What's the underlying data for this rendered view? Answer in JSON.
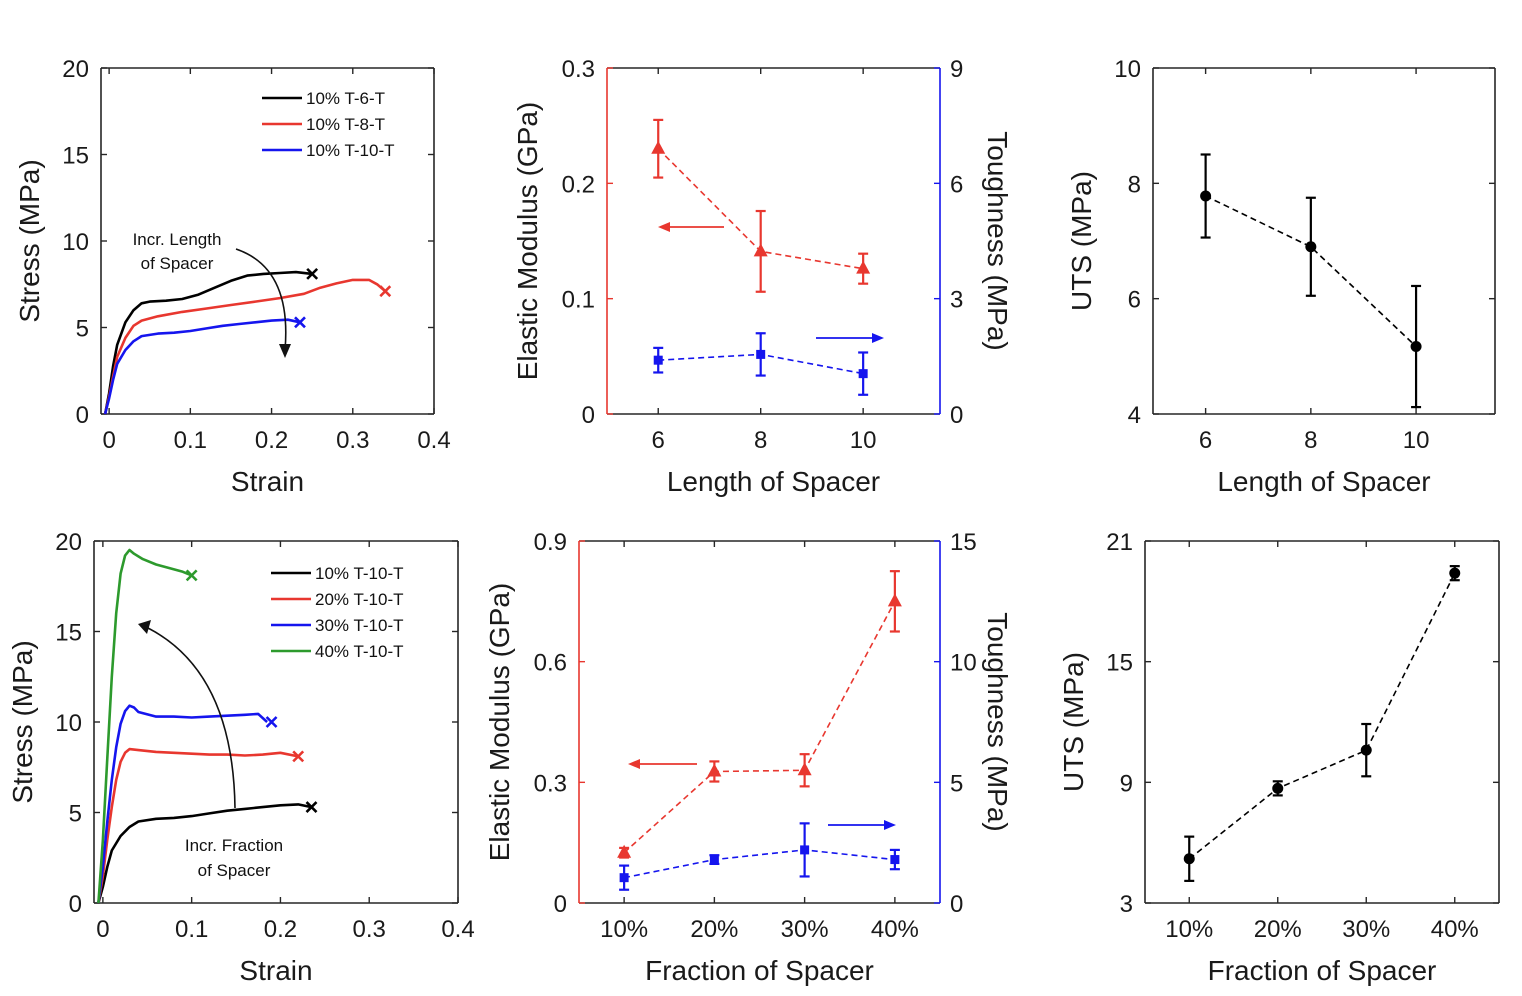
{
  "colors": {
    "black": "#000000",
    "red": "#e8372f",
    "blue": "#1515ee",
    "green": "#2d9a2d",
    "axis": "#262626"
  },
  "chart_data": [
    {
      "id": "a",
      "type": "line",
      "xlabel": "Strain",
      "ylabel": "Stress (MPa)",
      "xlim": [
        -0.01,
        0.4
      ],
      "ylim": [
        0,
        20
      ],
      "xticks": [
        0,
        0.1,
        0.2,
        0.3,
        0.4
      ],
      "xtick_labels": [
        "0",
        "0.1",
        "0.2",
        "0.3",
        "0.4"
      ],
      "yticks": [
        0,
        5,
        10,
        15,
        20
      ],
      "ytick_labels": [
        "0",
        "5",
        "10",
        "15",
        "20"
      ],
      "legend_position": "top-right",
      "series": [
        {
          "name": "10% T-6-T",
          "color_key": "black",
          "points": [
            [
              -0.005,
              0
            ],
            [
              0,
              1.2
            ],
            [
              0.005,
              2.8
            ],
            [
              0.01,
              4.0
            ],
            [
              0.02,
              5.3
            ],
            [
              0.03,
              6.0
            ],
            [
              0.04,
              6.4
            ],
            [
              0.05,
              6.5
            ],
            [
              0.07,
              6.55
            ],
            [
              0.09,
              6.65
            ],
            [
              0.11,
              6.9
            ],
            [
              0.13,
              7.3
            ],
            [
              0.15,
              7.7
            ],
            [
              0.17,
              8.0
            ],
            [
              0.19,
              8.1
            ],
            [
              0.21,
              8.15
            ],
            [
              0.23,
              8.2
            ],
            [
              0.25,
              8.1
            ]
          ],
          "end_marker": [
            0.25,
            8.1
          ]
        },
        {
          "name": "10% T-8-T",
          "color_key": "red",
          "points": [
            [
              -0.005,
              0
            ],
            [
              0,
              1.0
            ],
            [
              0.005,
              2.2
            ],
            [
              0.01,
              3.3
            ],
            [
              0.02,
              4.4
            ],
            [
              0.03,
              5.1
            ],
            [
              0.04,
              5.4
            ],
            [
              0.06,
              5.65
            ],
            [
              0.09,
              5.9
            ],
            [
              0.12,
              6.1
            ],
            [
              0.15,
              6.3
            ],
            [
              0.18,
              6.5
            ],
            [
              0.21,
              6.7
            ],
            [
              0.24,
              6.95
            ],
            [
              0.26,
              7.3
            ],
            [
              0.28,
              7.55
            ],
            [
              0.3,
              7.75
            ],
            [
              0.32,
              7.75
            ],
            [
              0.33,
              7.5
            ],
            [
              0.34,
              7.1
            ]
          ],
          "end_marker": [
            0.34,
            7.1
          ]
        },
        {
          "name": "10% T-10-T",
          "color_key": "blue",
          "points": [
            [
              -0.005,
              0
            ],
            [
              0,
              0.9
            ],
            [
              0.005,
              2.0
            ],
            [
              0.01,
              2.9
            ],
            [
              0.02,
              3.7
            ],
            [
              0.03,
              4.2
            ],
            [
              0.04,
              4.5
            ],
            [
              0.06,
              4.65
            ],
            [
              0.08,
              4.7
            ],
            [
              0.1,
              4.8
            ],
            [
              0.12,
              4.95
            ],
            [
              0.14,
              5.1
            ],
            [
              0.16,
              5.2
            ],
            [
              0.18,
              5.3
            ],
            [
              0.2,
              5.4
            ],
            [
              0.22,
              5.45
            ],
            [
              0.235,
              5.3
            ]
          ],
          "end_marker": [
            0.235,
            5.3
          ]
        }
      ],
      "annotation": {
        "lines": [
          "Incr. Length",
          "of Spacer"
        ]
      }
    },
    {
      "id": "b",
      "type": "line",
      "xlabel": "Length of Spacer",
      "ylabel": "Elastic Modulus (GPa)",
      "y2label": "Toughness (MPa)",
      "xlim": [
        5,
        11.5
      ],
      "ylim": [
        0,
        0.3
      ],
      "y2lim": [
        0,
        9
      ],
      "xticks": [
        6,
        8,
        10
      ],
      "xtick_labels": [
        "6",
        "8",
        "10"
      ],
      "yticks": [
        0,
        0.1,
        0.2,
        0.3
      ],
      "ytick_labels": [
        "0",
        "0.1",
        "0.2",
        "0.3"
      ],
      "y2ticks": [
        0,
        3,
        6,
        9
      ],
      "y2tick_labels": [
        "0",
        "3",
        "6",
        "9"
      ],
      "series": [
        {
          "axis": "left",
          "color_key": "red",
          "marker": "triangle",
          "x": [
            6,
            8,
            10
          ],
          "y": [
            0.23,
            0.141,
            0.126
          ],
          "err": [
            0.025,
            0.035,
            0.013
          ]
        },
        {
          "axis": "right",
          "color_key": "blue",
          "marker": "square",
          "x": [
            6,
            8,
            10
          ],
          "y": [
            1.4,
            1.55,
            1.05
          ],
          "err": [
            0.32,
            0.55,
            0.55
          ]
        }
      ]
    },
    {
      "id": "c",
      "type": "line",
      "xlabel": "Length of Spacer",
      "ylabel": "UTS (MPa)",
      "xlim": [
        5,
        11.5
      ],
      "ylim": [
        4,
        10
      ],
      "xticks": [
        6,
        8,
        10
      ],
      "xtick_labels": [
        "6",
        "8",
        "10"
      ],
      "yticks": [
        4,
        6,
        8,
        10
      ],
      "ytick_labels": [
        "4",
        "6",
        "8",
        "10"
      ],
      "series": [
        {
          "color_key": "black",
          "marker": "circle",
          "x": [
            6,
            8,
            10
          ],
          "y": [
            7.78,
            6.9,
            5.17
          ],
          "err": [
            0.72,
            0.85,
            1.05
          ]
        }
      ]
    },
    {
      "id": "d",
      "type": "line",
      "xlabel": "Strain",
      "ylabel": "Stress (MPa)",
      "xlim": [
        -0.01,
        0.4
      ],
      "ylim": [
        0,
        20
      ],
      "xticks": [
        0,
        0.1,
        0.2,
        0.3,
        0.4
      ],
      "xtick_labels": [
        "0",
        "0.1",
        "0.2",
        "0.3",
        "0.4"
      ],
      "yticks": [
        0,
        5,
        10,
        15,
        20
      ],
      "ytick_labels": [
        "0",
        "5",
        "10",
        "15",
        "20"
      ],
      "legend_position": "top-right",
      "series": [
        {
          "name": "10% T-10-T",
          "color_key": "black",
          "points": [
            [
              -0.005,
              0
            ],
            [
              0,
              0.9
            ],
            [
              0.005,
              2.0
            ],
            [
              0.01,
              2.9
            ],
            [
              0.02,
              3.7
            ],
            [
              0.03,
              4.2
            ],
            [
              0.04,
              4.5
            ],
            [
              0.06,
              4.65
            ],
            [
              0.08,
              4.7
            ],
            [
              0.1,
              4.8
            ],
            [
              0.12,
              4.95
            ],
            [
              0.14,
              5.1
            ],
            [
              0.16,
              5.2
            ],
            [
              0.18,
              5.3
            ],
            [
              0.2,
              5.4
            ],
            [
              0.22,
              5.45
            ],
            [
              0.235,
              5.3
            ]
          ],
          "end_marker": [
            0.235,
            5.3
          ]
        },
        {
          "name": "20% T-10-T",
          "color_key": "red",
          "points": [
            [
              -0.005,
              0
            ],
            [
              0,
              1.5
            ],
            [
              0.005,
              3.5
            ],
            [
              0.01,
              5.3
            ],
            [
              0.015,
              6.8
            ],
            [
              0.02,
              7.8
            ],
            [
              0.025,
              8.3
            ],
            [
              0.03,
              8.5
            ],
            [
              0.04,
              8.45
            ],
            [
              0.06,
              8.35
            ],
            [
              0.08,
              8.3
            ],
            [
              0.1,
              8.25
            ],
            [
              0.12,
              8.2
            ],
            [
              0.14,
              8.2
            ],
            [
              0.16,
              8.15
            ],
            [
              0.18,
              8.2
            ],
            [
              0.2,
              8.3
            ],
            [
              0.22,
              8.1
            ]
          ],
          "end_marker": [
            0.22,
            8.1
          ]
        },
        {
          "name": "30% T-10-T",
          "color_key": "blue",
          "points": [
            [
              -0.005,
              0
            ],
            [
              0,
              2.0
            ],
            [
              0.005,
              4.5
            ],
            [
              0.01,
              6.8
            ],
            [
              0.015,
              8.6
            ],
            [
              0.02,
              9.9
            ],
            [
              0.025,
              10.6
            ],
            [
              0.03,
              10.9
            ],
            [
              0.035,
              10.8
            ],
            [
              0.04,
              10.55
            ],
            [
              0.06,
              10.3
            ],
            [
              0.08,
              10.3
            ],
            [
              0.1,
              10.25
            ],
            [
              0.12,
              10.3
            ],
            [
              0.14,
              10.35
            ],
            [
              0.16,
              10.4
            ],
            [
              0.175,
              10.45
            ],
            [
              0.185,
              10.0
            ]
          ],
          "end_marker": [
            0.19,
            10.0
          ]
        },
        {
          "name": "40% T-10-T",
          "color_key": "green",
          "points": [
            [
              -0.005,
              0
            ],
            [
              0,
              3.5
            ],
            [
              0.005,
              8.0
            ],
            [
              0.01,
              12.5
            ],
            [
              0.015,
              16.0
            ],
            [
              0.02,
              18.2
            ],
            [
              0.025,
              19.2
            ],
            [
              0.03,
              19.5
            ],
            [
              0.035,
              19.3
            ],
            [
              0.045,
              19.0
            ],
            [
              0.06,
              18.7
            ],
            [
              0.075,
              18.5
            ],
            [
              0.09,
              18.3
            ],
            [
              0.1,
              18.1
            ]
          ],
          "end_marker": [
            0.1,
            18.1
          ]
        }
      ],
      "annotation": {
        "lines": [
          "Incr. Fraction",
          "of Spacer"
        ]
      }
    },
    {
      "id": "e",
      "type": "line",
      "xlabel": "Fraction of Spacer",
      "ylabel": "Elastic Modulus (GPa)",
      "y2label": "Toughness (MPa)",
      "xlim": [
        0.5,
        4.5
      ],
      "ylim": [
        0,
        0.9
      ],
      "y2lim": [
        0,
        15
      ],
      "xticks": [
        1,
        2,
        3,
        4
      ],
      "xtick_labels": [
        "10%",
        "20%",
        "30%",
        "40%"
      ],
      "yticks": [
        0,
        0.3,
        0.6,
        0.9
      ],
      "ytick_labels": [
        "0",
        "0.3",
        "0.6",
        "0.9"
      ],
      "y2ticks": [
        0,
        5,
        10,
        15
      ],
      "y2tick_labels": [
        "0",
        "5",
        "10",
        "15"
      ],
      "series": [
        {
          "axis": "left",
          "color_key": "red",
          "marker": "triangle",
          "x": [
            1,
            2,
            3,
            4
          ],
          "y": [
            0.125,
            0.327,
            0.33,
            0.75
          ],
          "err": [
            0.012,
            0.025,
            0.04,
            0.075
          ]
        },
        {
          "axis": "right",
          "color_key": "blue",
          "marker": "square",
          "x": [
            1,
            2,
            3,
            4
          ],
          "y": [
            1.05,
            1.8,
            2.2,
            1.8
          ],
          "err": [
            0.5,
            0.18,
            1.1,
            0.4
          ]
        }
      ]
    },
    {
      "id": "f",
      "type": "line",
      "xlabel": "Fraction of Spacer",
      "ylabel": "UTS (MPa)",
      "xlim": [
        0.5,
        4.5
      ],
      "ylim": [
        3,
        21
      ],
      "xticks": [
        1,
        2,
        3,
        4
      ],
      "xtick_labels": [
        "10%",
        "20%",
        "30%",
        "40%"
      ],
      "yticks": [
        3,
        9,
        15,
        21
      ],
      "ytick_labels": [
        "3",
        "9",
        "15",
        "21"
      ],
      "series": [
        {
          "color_key": "black",
          "marker": "circle",
          "x": [
            1,
            2,
            3,
            4
          ],
          "y": [
            5.2,
            8.7,
            10.6,
            19.4
          ],
          "err": [
            1.1,
            0.35,
            1.3,
            0.35
          ]
        }
      ]
    }
  ]
}
